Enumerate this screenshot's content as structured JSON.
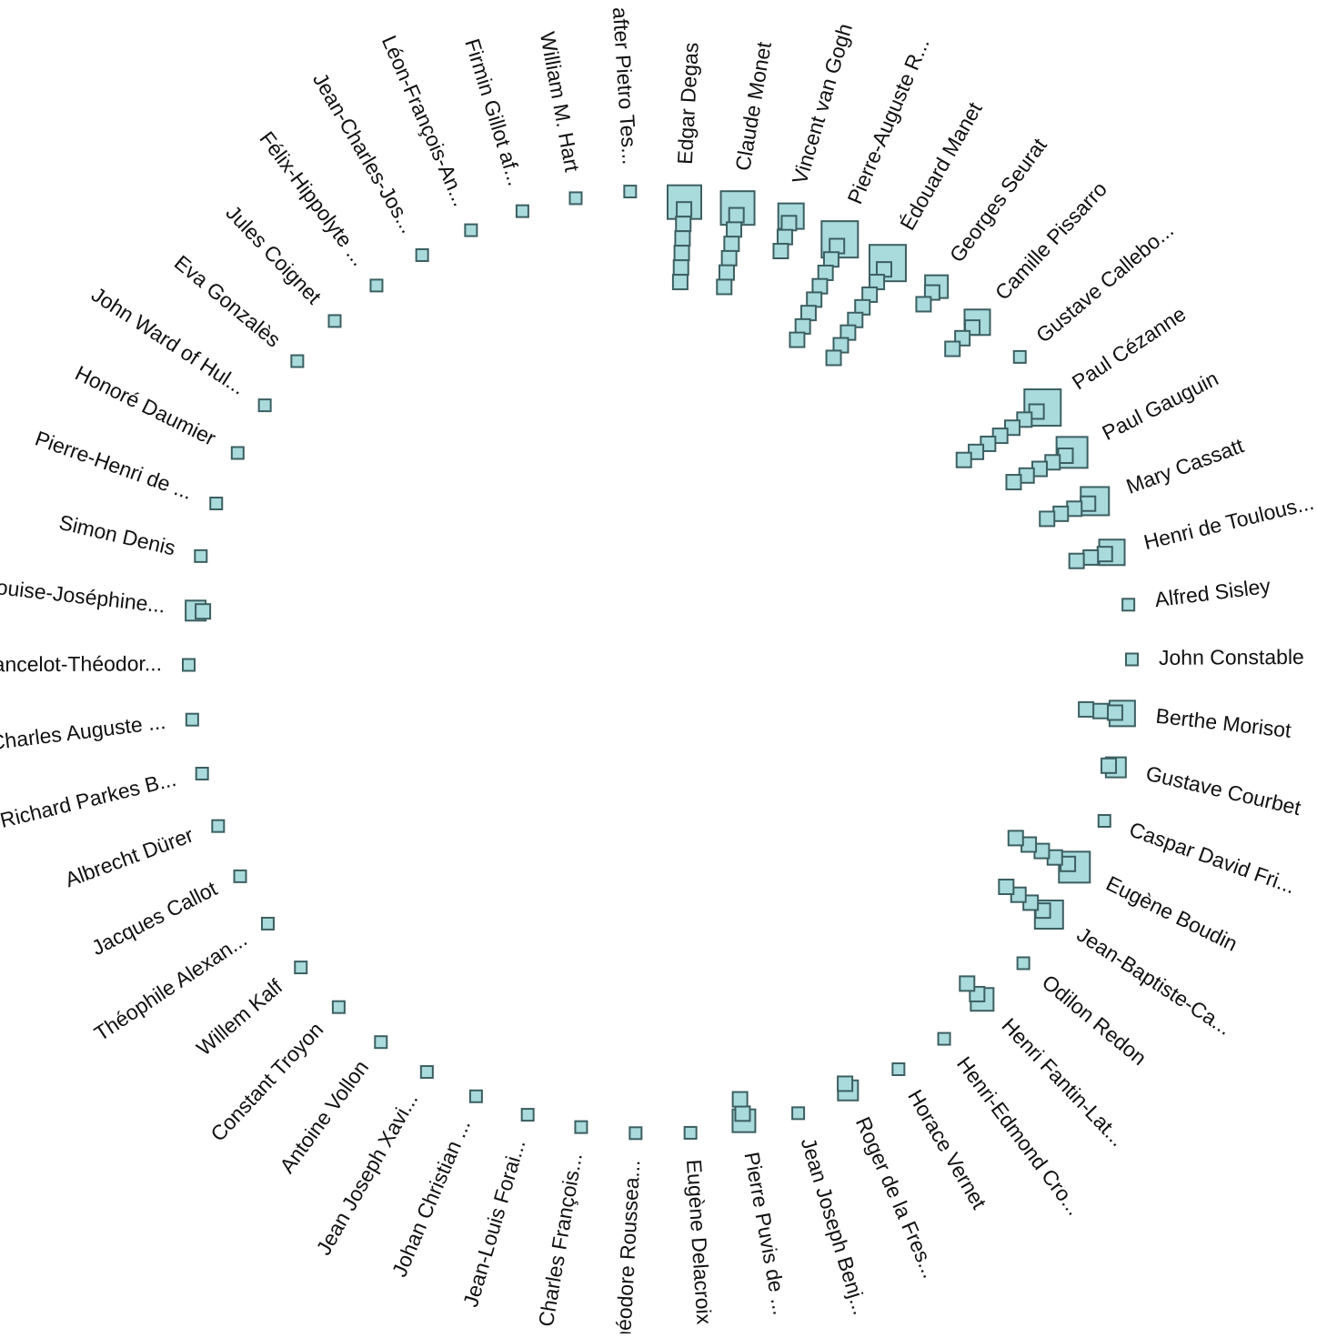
{
  "chart_data": {
    "type": "radial-squares",
    "color": "#a9dadc",
    "categories": [
      "Edgar Degas",
      "Claude Monet",
      "Vincent van Gogh",
      "Pierre-Auguste R...",
      "Édouard Manet",
      "Georges Seurat",
      "Camille Pissarro",
      "Gustave Callebo...",
      "Paul Cézanne",
      "Paul Gauguin",
      "Mary Cassatt",
      "Henri de Toulous...",
      "Alfred Sisley",
      "John Constable",
      "Berthe Morisot",
      "Gustave Courbet",
      "Caspar David Fri...",
      "Eugène Boudin",
      "Jean-Baptiste-Ca...",
      "Odilon Redon",
      "Henri Fantin-Lat...",
      "Henri-Edmond Cro...",
      "Horace Vernet",
      "Roger de la Fres...",
      "Jean Joseph Benj...",
      "Pierre Puvis de ...",
      "Eugène Delacroix",
      "Théodore Roussea...",
      "Charles François...",
      "Jean-Louis Forai...",
      "Johan Christian ...",
      "Jean Joseph Xavi...",
      "Antoine Vollon",
      "Constant Troyon",
      "Willem Kalf",
      "Théophile Alexan...",
      "Jacques Callot",
      "Albrecht Dürer",
      "Richard Parkes B...",
      "Charles Auguste ...",
      "Lancelot-Théodor...",
      "Louise-Joséphine...",
      "Simon Denis",
      "Pierre-Henri de ...",
      "Honoré Daumier",
      "John Ward of Hul...",
      "Eva Gonzalès",
      "Jules Coignet",
      "Félix-Hippolyte ...",
      "Jean-Charles-Jos...",
      "Léon-François-An...",
      "Firmin Gillot af...",
      "William M. Hart",
      "after Pietro Tes..."
    ],
    "values": [
      7,
      7,
      4,
      9,
      9,
      3,
      4,
      1,
      8,
      6,
      5,
      4,
      1,
      1,
      4,
      2,
      1,
      6,
      5,
      1,
      3,
      1,
      1,
      2,
      1,
      3,
      1,
      1,
      1,
      1,
      1,
      1,
      1,
      1,
      1,
      1,
      1,
      1,
      1,
      1,
      1,
      2,
      1,
      1,
      1,
      1,
      1,
      1,
      1,
      1,
      1,
      1,
      1,
      1
    ]
  }
}
